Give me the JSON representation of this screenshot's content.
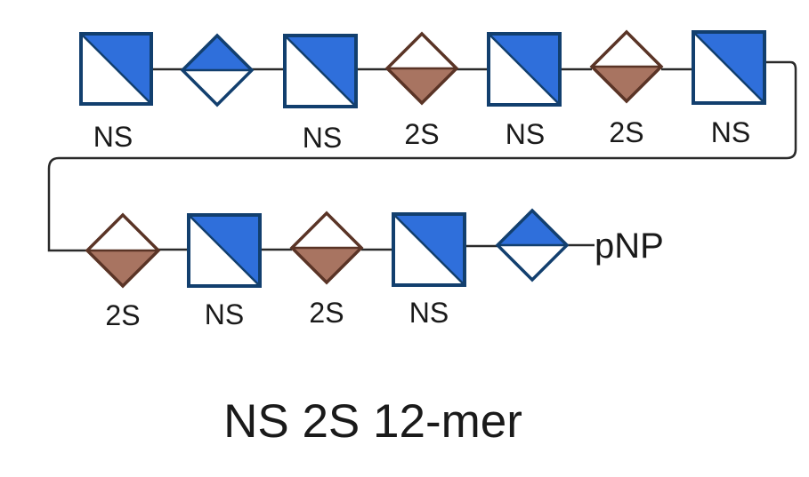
{
  "title": "NS 2S 12-mer",
  "end_label": "pNP",
  "colors": {
    "glcnac_blue": "#2f6fdb",
    "blue_outline": "#123f6e",
    "iduronic_brown": "#a87461",
    "brown_outline": "#5a3426",
    "connector": "#2a2a2a"
  },
  "row1": [
    {
      "type": "square",
      "label": "NS"
    },
    {
      "type": "diamond-blue",
      "label": ""
    },
    {
      "type": "square",
      "label": "NS"
    },
    {
      "type": "diamond-brown",
      "label": "2S"
    },
    {
      "type": "square",
      "label": "NS"
    },
    {
      "type": "diamond-brown",
      "label": "2S"
    },
    {
      "type": "square",
      "label": "NS"
    }
  ],
  "row2": [
    {
      "type": "diamond-brown",
      "label": "2S"
    },
    {
      "type": "square",
      "label": "NS"
    },
    {
      "type": "diamond-brown",
      "label": "2S"
    },
    {
      "type": "square",
      "label": "NS"
    },
    {
      "type": "diamond-blue",
      "label": ""
    }
  ]
}
